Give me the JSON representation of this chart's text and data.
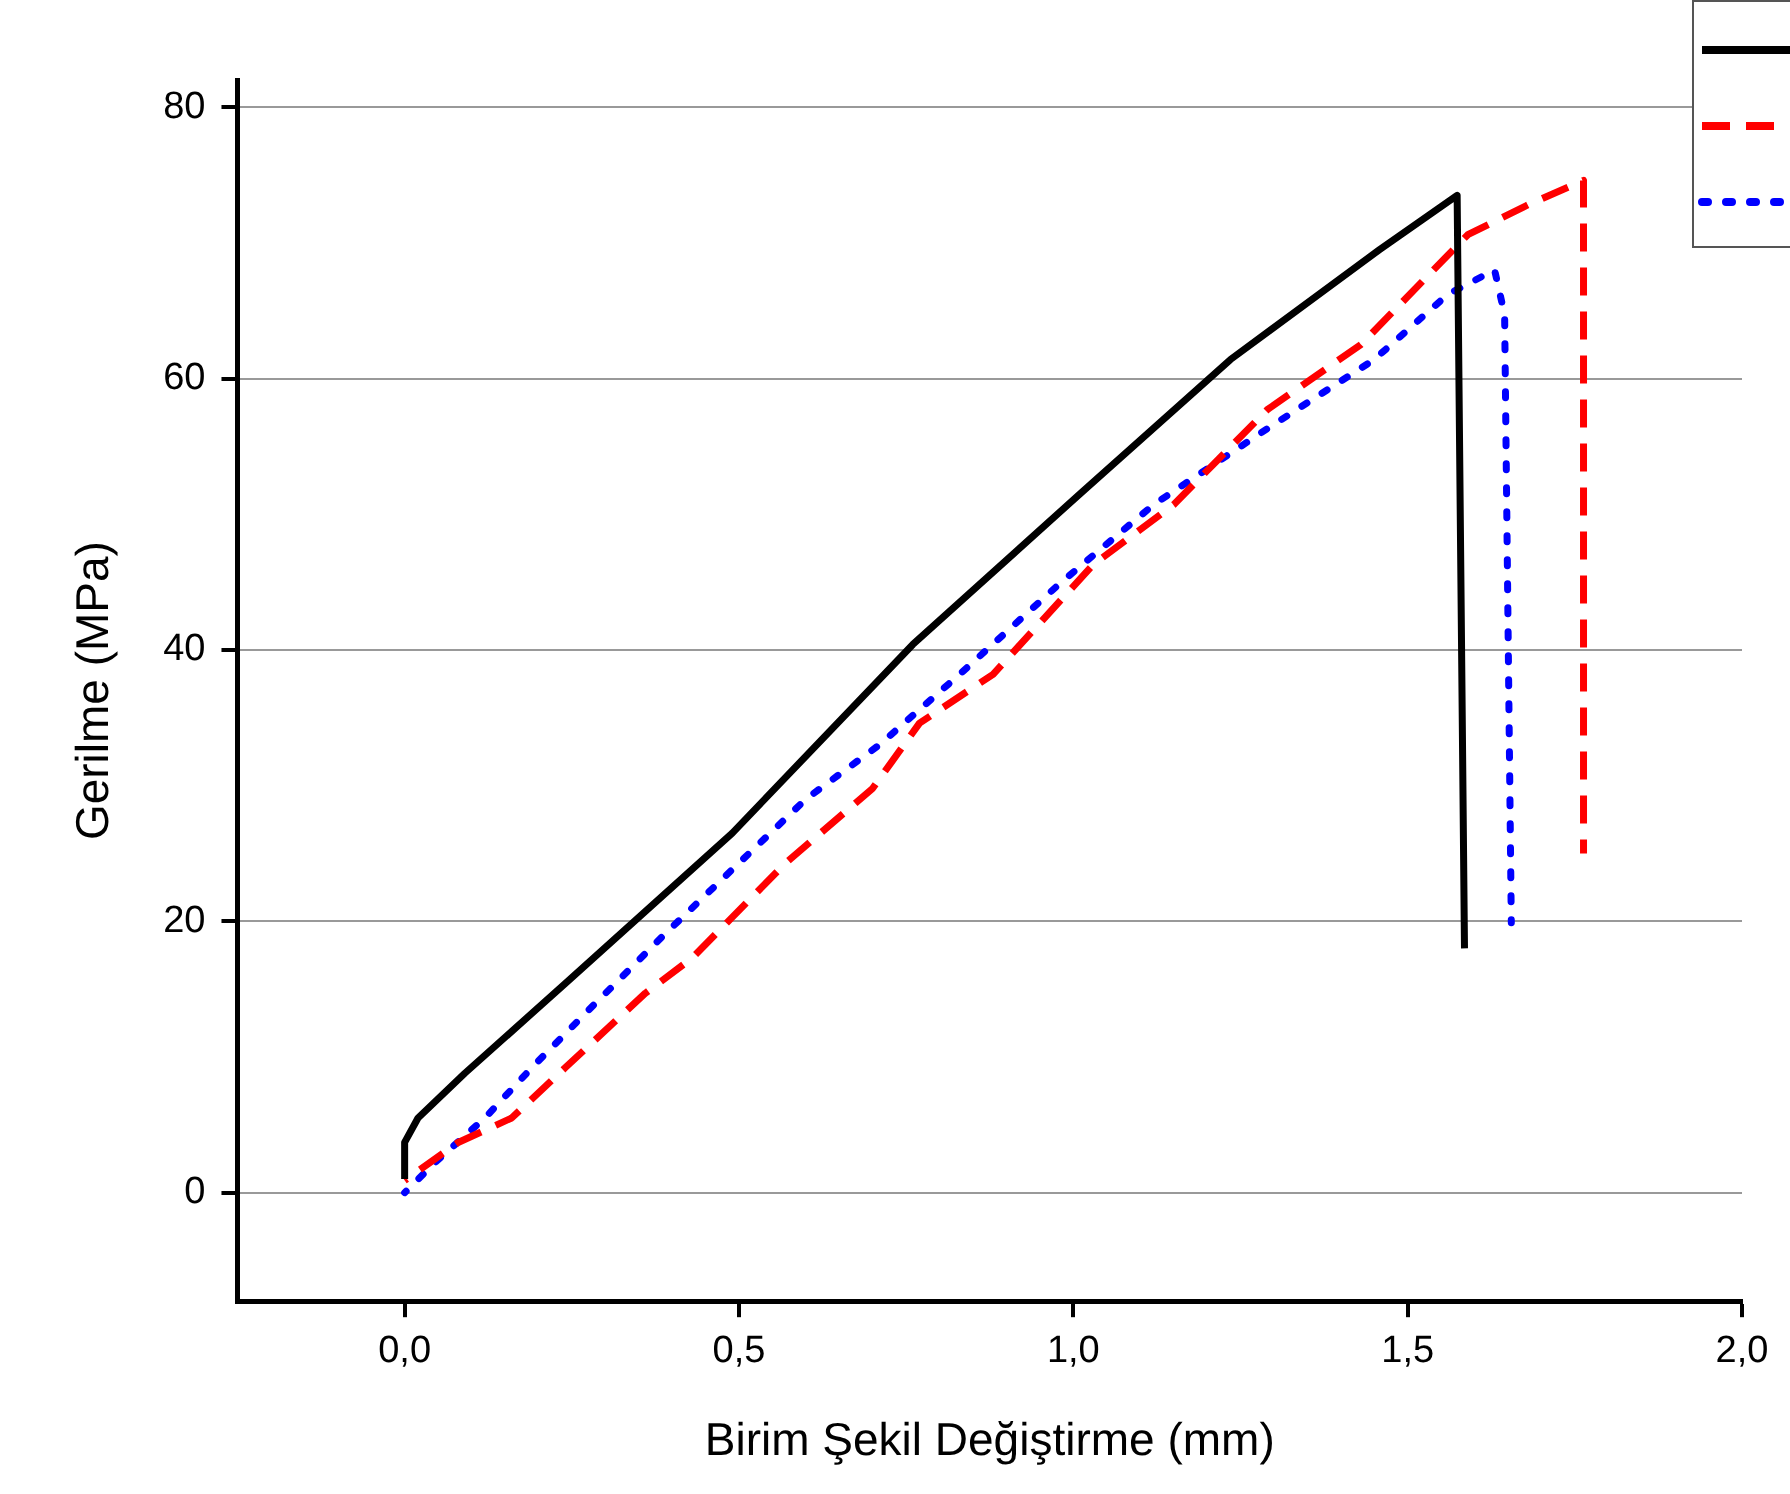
{
  "chart_data": {
    "type": "line",
    "xlabel": "Birim Şekil Değiştirme (mm)",
    "ylabel": "Gerilme (MPa)",
    "xlim": [
      -0.25,
      2.0
    ],
    "xticks": [
      {
        "value": 0,
        "label": "0,0"
      },
      {
        "value": 0.5,
        "label": "0,5"
      },
      {
        "value": 1,
        "label": "1,0"
      },
      {
        "value": 1.5,
        "label": "1,5"
      },
      {
        "value": 2,
        "label": "2,0"
      }
    ],
    "ylim": [
      -8,
      82
    ],
    "yticks": [
      0,
      20,
      40,
      60,
      80
    ],
    "grid": "y",
    "marker": "none",
    "series": [
      {
        "color": "#000000",
        "line_style": "solid",
        "x": [
          0,
          0,
          0.02,
          0.09,
          0.24,
          0.49,
          0.76,
          1.01,
          1.235,
          1.458,
          1.574,
          1.585
        ],
        "values": [
          1,
          3.7,
          5.5,
          8.8,
          15.4,
          26.5,
          40.4,
          51.5,
          61.4,
          69.5,
          73.5,
          18
        ]
      },
      {
        "color": "#ff0000",
        "line_style": "dashed",
        "x": [
          0,
          0.08,
          0.16,
          0.24,
          0.36,
          0.43,
          0.57,
          0.7,
          0.77,
          0.88,
          1.03,
          1.15,
          1.29,
          1.43,
          1.59,
          1.68,
          1.763,
          1.763
        ],
        "values": [
          0.9,
          3.7,
          5.5,
          9.2,
          14.7,
          17.3,
          24.3,
          29.8,
          34.6,
          38.2,
          46.3,
          50.7,
          57.7,
          62.5,
          70.6,
          72.8,
          74.6,
          25
        ]
      },
      {
        "color": "#0000ff",
        "line_style": "dotted",
        "x": [
          0,
          0.045,
          0.12,
          0.19,
          0.27,
          0.39,
          0.46,
          0.6,
          0.71,
          0.83,
          0.98,
          1.12,
          1.29,
          1.45,
          1.56,
          1.63,
          1.645,
          1.655
        ],
        "values": [
          0,
          2.2,
          5.5,
          9.2,
          13.2,
          19.1,
          22.4,
          29,
          33,
          38.2,
          44.9,
          50.7,
          56.3,
          61.4,
          66.2,
          68,
          64.7,
          19.9
        ]
      }
    ]
  }
}
